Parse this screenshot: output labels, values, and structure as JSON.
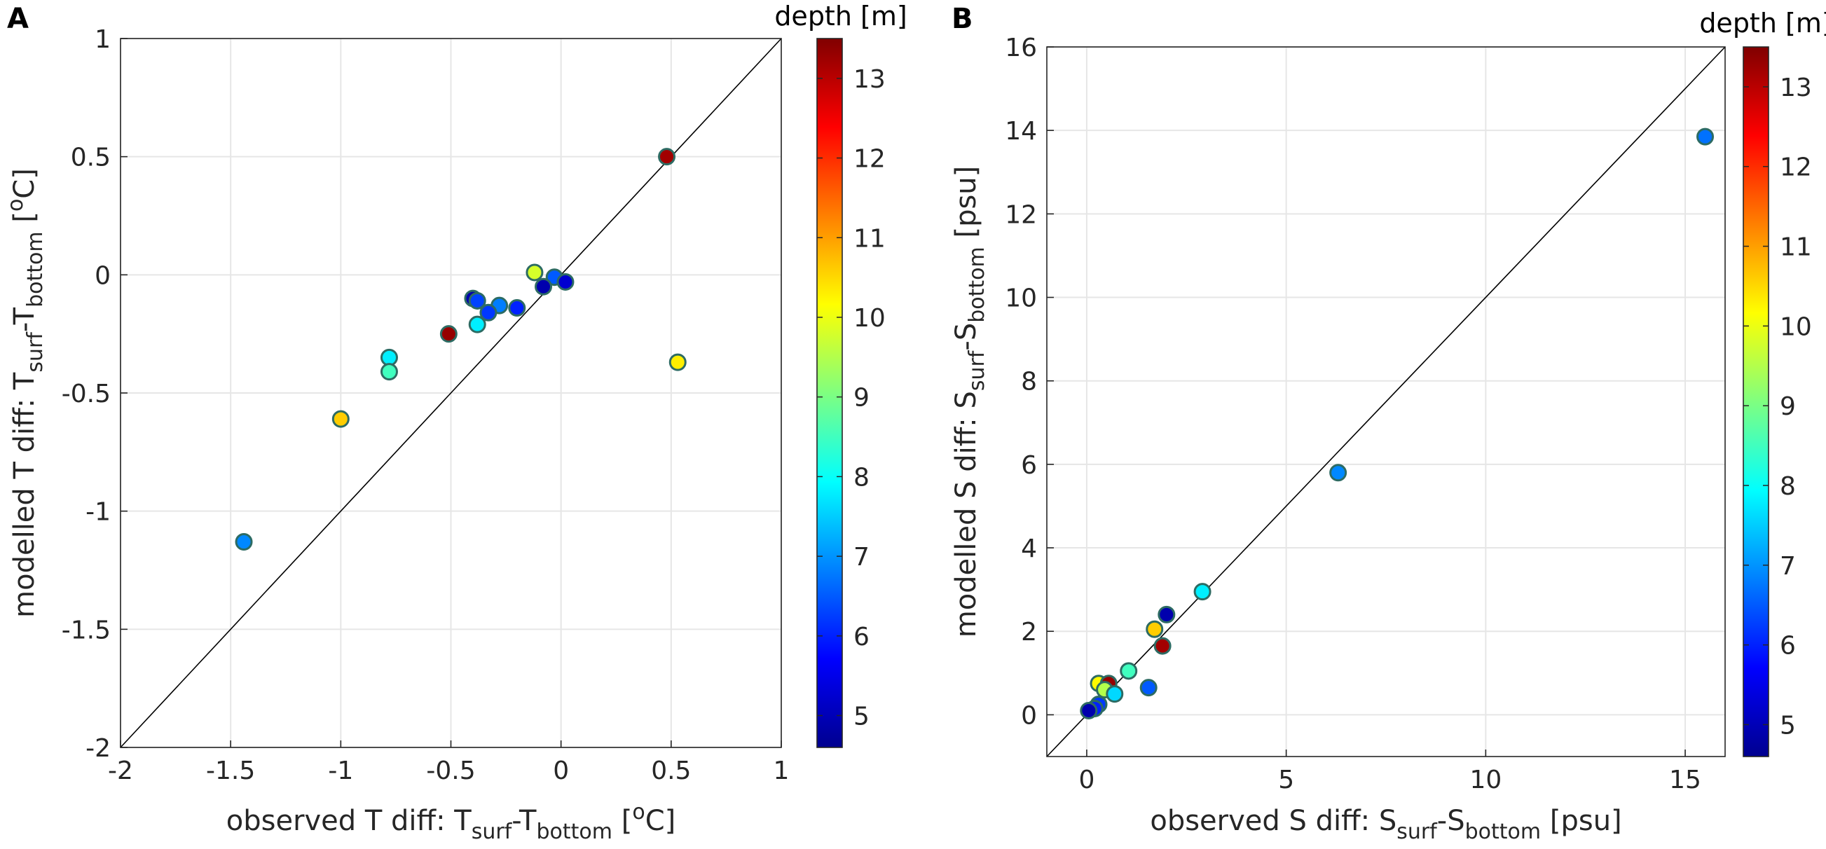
{
  "chart_data": [
    {
      "panel": "A",
      "type": "scatter",
      "xlabel": {
        "pre": "observed T diff: T",
        "sub1": "surf",
        "mid": "-T",
        "sub2": "bottom",
        "post1": " [",
        "sup": "o",
        "post2": "C]"
      },
      "ylabel": {
        "pre": "modelled T diff: T",
        "sub1": "surf",
        "mid": "-T",
        "sub2": "bottom",
        "post1": " [",
        "sup": "o",
        "post2": "C]"
      },
      "xlim": [
        -2,
        1
      ],
      "ylim": [
        -2,
        1
      ],
      "xticks": [
        -2,
        -1.5,
        -1,
        -0.5,
        0,
        0.5,
        1
      ],
      "yticks": [
        -2,
        -1.5,
        -1,
        -0.5,
        0,
        0.5,
        1
      ],
      "xtick_labels": [
        "-2",
        "-1.5",
        "-1",
        "-0.5",
        "0",
        "0.5",
        "1"
      ],
      "ytick_labels": [
        "-2",
        "-1.5",
        "-1",
        "-0.5",
        "0",
        "0.5",
        "1"
      ],
      "identity_line": true,
      "points": [
        {
          "x": 0.48,
          "y": 0.5,
          "depth": 13.2
        },
        {
          "x": 0.53,
          "y": -0.37,
          "depth": 10.3
        },
        {
          "x": -0.12,
          "y": 0.01,
          "depth": 9.8
        },
        {
          "x": -0.03,
          "y": -0.01,
          "depth": 6.5
        },
        {
          "x": 0.02,
          "y": -0.03,
          "depth": 5.3
        },
        {
          "x": -0.08,
          "y": -0.05,
          "depth": 5.0
        },
        {
          "x": -0.4,
          "y": -0.1,
          "depth": 5.0
        },
        {
          "x": -0.38,
          "y": -0.11,
          "depth": 6.3
        },
        {
          "x": -0.28,
          "y": -0.13,
          "depth": 6.8
        },
        {
          "x": -0.2,
          "y": -0.14,
          "depth": 6.0
        },
        {
          "x": -0.33,
          "y": -0.16,
          "depth": 6.2
        },
        {
          "x": -0.38,
          "y": -0.21,
          "depth": 7.8
        },
        {
          "x": -0.51,
          "y": -0.25,
          "depth": 13.3
        },
        {
          "x": -0.78,
          "y": -0.35,
          "depth": 7.8
        },
        {
          "x": -0.78,
          "y": -0.41,
          "depth": 8.5
        },
        {
          "x": -1.0,
          "y": -0.61,
          "depth": 10.6
        },
        {
          "x": -1.44,
          "y": -1.13,
          "depth": 6.9
        }
      ],
      "colorbar": {
        "title": "depth [m]",
        "range": [
          4.6,
          13.5
        ],
        "ticks": [
          5,
          6,
          7,
          8,
          9,
          10,
          11,
          12,
          13
        ],
        "tick_labels": [
          "5",
          "6",
          "7",
          "8",
          "9",
          "10",
          "11",
          "12",
          "13"
        ],
        "colormap": "jet"
      }
    },
    {
      "panel": "B",
      "type": "scatter",
      "xlabel": {
        "pre": "observed S diff: S",
        "sub1": "surf",
        "mid": "-S",
        "sub2": "bottom",
        "post1": " [psu]"
      },
      "ylabel": {
        "pre": "modelled S diff: S",
        "sub1": "surf",
        "mid": "-S",
        "sub2": "bottom",
        "post1": " [psu]"
      },
      "xlim": [
        -1,
        16
      ],
      "ylim": [
        -1,
        16
      ],
      "xticks": [
        0,
        5,
        10,
        15
      ],
      "yticks": [
        0,
        2,
        4,
        6,
        8,
        10,
        12,
        14,
        16
      ],
      "xtick_labels": [
        "0",
        "5",
        "10",
        "15"
      ],
      "ytick_labels": [
        "0",
        "2",
        "4",
        "6",
        "8",
        "10",
        "12",
        "14",
        "16"
      ],
      "identity_line": true,
      "points": [
        {
          "x": 15.5,
          "y": 13.85,
          "depth": 6.7
        },
        {
          "x": 6.3,
          "y": 5.8,
          "depth": 6.9
        },
        {
          "x": 2.9,
          "y": 2.95,
          "depth": 7.8
        },
        {
          "x": 2.0,
          "y": 2.4,
          "depth": 5.0
        },
        {
          "x": 1.7,
          "y": 2.05,
          "depth": 10.6
        },
        {
          "x": 1.9,
          "y": 1.65,
          "depth": 13.2
        },
        {
          "x": 1.55,
          "y": 0.65,
          "depth": 6.5
        },
        {
          "x": 1.05,
          "y": 1.05,
          "depth": 8.5
        },
        {
          "x": 0.3,
          "y": 0.75,
          "depth": 10.2
        },
        {
          "x": 0.55,
          "y": 0.75,
          "depth": 13.3
        },
        {
          "x": 0.45,
          "y": 0.6,
          "depth": 9.5
        },
        {
          "x": 0.7,
          "y": 0.5,
          "depth": 7.6
        },
        {
          "x": 0.3,
          "y": 0.25,
          "depth": 6.2
        },
        {
          "x": 0.2,
          "y": 0.15,
          "depth": 6.0
        },
        {
          "x": 0.05,
          "y": 0.1,
          "depth": 5.0
        }
      ],
      "colorbar": {
        "title": "depth [m]",
        "range": [
          4.6,
          13.5
        ],
        "ticks": [
          5,
          6,
          7,
          8,
          9,
          10,
          11,
          12,
          13
        ],
        "tick_labels": [
          "5",
          "6",
          "7",
          "8",
          "9",
          "10",
          "11",
          "12",
          "13"
        ],
        "colormap": "jet"
      }
    }
  ]
}
